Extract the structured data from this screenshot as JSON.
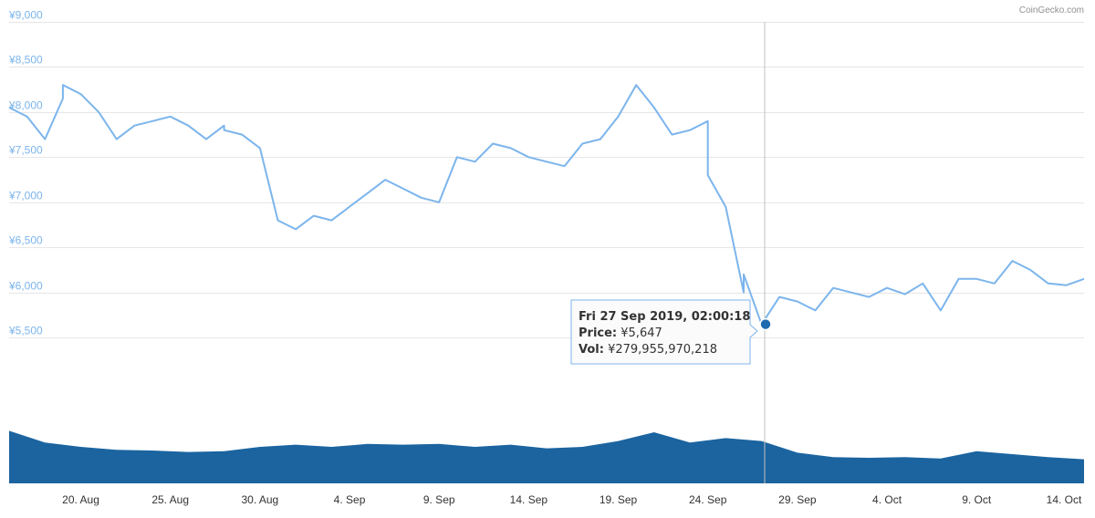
{
  "credit": "CoinGecko.com",
  "colors": {
    "price_line": "#7cb5ec",
    "volume_fill": "#1b64a0",
    "grid": "#e6e6e6",
    "crosshair": "#c0c0c0",
    "marker": "#1f6bb0",
    "tooltip_border": "#7cb5ec"
  },
  "tooltip": {
    "date": "Fri 27 Sep 2019, 02:00:18",
    "price_label": "Price:",
    "price_value": "¥5,647",
    "vol_label": "Vol:",
    "vol_value": "¥279,955,970,218"
  },
  "chart_data": {
    "type": "line",
    "title": "",
    "ylim": [
      5400,
      9000
    ],
    "yticks": [
      "¥5,500",
      "¥6,000",
      "¥6,500",
      "¥7,000",
      "¥7,500",
      "¥8,000",
      "¥8,500",
      "¥9,000"
    ],
    "ytick_values": [
      5500,
      6000,
      6500,
      7000,
      7500,
      8000,
      8500,
      9000
    ],
    "xticks": [
      "20. Aug",
      "25. Aug",
      "30. Aug",
      "4. Sep",
      "9. Sep",
      "14. Sep",
      "19. Sep",
      "24. Sep",
      "29. Sep",
      "4. Oct",
      "9. Oct",
      "14. Oct"
    ],
    "x_start": "2019-08-16",
    "x_end": "2019-10-15",
    "grid": true,
    "price_series": {
      "name": "Price",
      "x": [
        "2019-08-16",
        "2019-08-17",
        "2019-08-18",
        "2019-08-19",
        "2019-08-19",
        "2019-08-20",
        "2019-08-21",
        "2019-08-22",
        "2019-08-23",
        "2019-08-24",
        "2019-08-25",
        "2019-08-26",
        "2019-08-27",
        "2019-08-28",
        "2019-08-28",
        "2019-08-29",
        "2019-08-30",
        "2019-08-31",
        "2019-09-01",
        "2019-09-02",
        "2019-09-03",
        "2019-09-04",
        "2019-09-05",
        "2019-09-06",
        "2019-09-07",
        "2019-09-08",
        "2019-09-09",
        "2019-09-10",
        "2019-09-11",
        "2019-09-12",
        "2019-09-13",
        "2019-09-14",
        "2019-09-15",
        "2019-09-16",
        "2019-09-17",
        "2019-09-18",
        "2019-09-19",
        "2019-09-20",
        "2019-09-21",
        "2019-09-22",
        "2019-09-23",
        "2019-09-24",
        "2019-09-24",
        "2019-09-25",
        "2019-09-26",
        "2019-09-26",
        "2019-09-27",
        "2019-09-28",
        "2019-09-29",
        "2019-09-30",
        "2019-10-01",
        "2019-10-02",
        "2019-10-03",
        "2019-10-04",
        "2019-10-05",
        "2019-10-06",
        "2019-10-07",
        "2019-10-08",
        "2019-10-09",
        "2019-10-10",
        "2019-10-11",
        "2019-10-12",
        "2019-10-13",
        "2019-10-14",
        "2019-10-15"
      ],
      "y": [
        8050,
        7950,
        7700,
        8150,
        8300,
        8200,
        8000,
        7700,
        7850,
        7900,
        7950,
        7850,
        7700,
        7850,
        7800,
        7750,
        7600,
        6800,
        6700,
        6850,
        6800,
        6950,
        7100,
        7250,
        7150,
        7050,
        7000,
        7500,
        7450,
        7650,
        7600,
        7500,
        7450,
        7400,
        7650,
        7700,
        7950,
        8300,
        8050,
        7750,
        7800,
        7900,
        7300,
        6950,
        6000,
        6200,
        5647,
        5950,
        5900,
        5800,
        6050,
        6000,
        5950,
        6050,
        5980,
        6100,
        5800,
        6150,
        6150,
        6100,
        6350,
        6250,
        6100,
        6080,
        6150
      ]
    },
    "volume_series": {
      "name": "Vol",
      "x": [
        "2019-08-16",
        "2019-08-18",
        "2019-08-20",
        "2019-08-22",
        "2019-08-24",
        "2019-08-26",
        "2019-08-28",
        "2019-08-30",
        "2019-09-01",
        "2019-09-03",
        "2019-09-05",
        "2019-09-07",
        "2019-09-09",
        "2019-09-11",
        "2019-09-13",
        "2019-09-15",
        "2019-09-17",
        "2019-09-19",
        "2019-09-21",
        "2019-09-23",
        "2019-09-25",
        "2019-09-27",
        "2019-09-29",
        "2019-10-01",
        "2019-10-03",
        "2019-10-05",
        "2019-10-07",
        "2019-10-09",
        "2019-10-11",
        "2019-10-13",
        "2019-10-15"
      ],
      "y": [
        72,
        56,
        50,
        46,
        45,
        43,
        44,
        50,
        53,
        50,
        54,
        53,
        54,
        50,
        53,
        48,
        50,
        58,
        70,
        56,
        62,
        58,
        42,
        36,
        35,
        36,
        34,
        44,
        40,
        36,
        33
      ]
    }
  }
}
